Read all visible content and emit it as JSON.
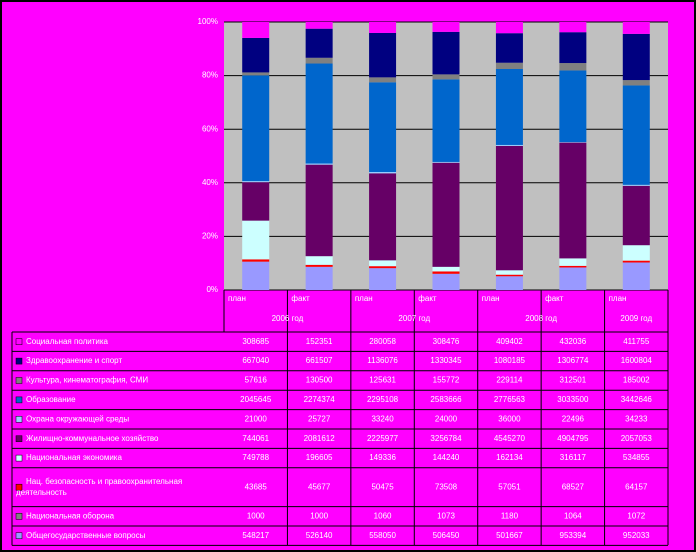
{
  "chart_data": {
    "type": "stacked_percent_bar",
    "categories": [
      "план",
      "факт",
      "план",
      "факт",
      "план",
      "факт",
      "план"
    ],
    "groups": [
      {
        "label": "2006 год",
        "count": 2
      },
      {
        "label": "2007 год",
        "count": 2
      },
      {
        "label": "2008 год",
        "count": 2
      },
      {
        "label": "2009 год",
        "count": 1
      }
    ],
    "ylim": [
      0,
      100
    ],
    "yticks": [
      {
        "value": 0,
        "label": "0%"
      },
      {
        "value": 20,
        "label": "20%"
      },
      {
        "value": 40,
        "label": "40%"
      },
      {
        "value": 60,
        "label": "60%"
      },
      {
        "value": 80,
        "label": "80%"
      },
      {
        "value": 100,
        "label": "100%"
      }
    ],
    "grid": true,
    "series": [
      {
        "name": "Социальная политика",
        "color": "#ff00ff",
        "values": [
          308685,
          152351,
          280058,
          308476,
          409402,
          432036,
          411755
        ]
      },
      {
        "name": "Здравоохранение и спорт",
        "color": "#000080",
        "values": [
          667040,
          661507,
          1136076,
          1330345,
          1080185,
          1306774,
          1600804
        ]
      },
      {
        "name": "Культура, кинематография, СМИ",
        "color": "#808080",
        "values": [
          57616,
          130500,
          125631,
          155772,
          229114,
          312501,
          185002
        ]
      },
      {
        "name": "Образование",
        "color": "#0066cc",
        "values": [
          2045645,
          2274374,
          2295108,
          2583666,
          2776563,
          3033500,
          3442646
        ]
      },
      {
        "name": "Охрана окружающей среды",
        "color": "#99ccff",
        "values": [
          21000,
          25727,
          33240,
          24000,
          36000,
          22496,
          34233
        ]
      },
      {
        "name": "Жилищно-коммунальное хозяйство",
        "color": "#660066",
        "values": [
          744061,
          2081612,
          2225977,
          3256784,
          4545270,
          4904795,
          2057053
        ]
      },
      {
        "name": "Национальная экономика",
        "color": "#ccffff",
        "values": [
          749788,
          196605,
          149336,
          144240,
          162134,
          316117,
          534855
        ]
      },
      {
        "name": "Нац. безопасность и правоохранительная деятельность",
        "color": "#ff0000",
        "values": [
          43685,
          45677,
          50475,
          73508,
          57051,
          68527,
          64157
        ]
      },
      {
        "name": "Национальная оборона",
        "color": "#808080",
        "values": [
          1000,
          1000,
          1060,
          1073,
          1180,
          1064,
          1072
        ]
      },
      {
        "name": "Общегосударственные вопросы",
        "color": "#9999ff",
        "values": [
          548217,
          526140,
          558050,
          506450,
          501667,
          953394,
          952033
        ]
      }
    ]
  }
}
